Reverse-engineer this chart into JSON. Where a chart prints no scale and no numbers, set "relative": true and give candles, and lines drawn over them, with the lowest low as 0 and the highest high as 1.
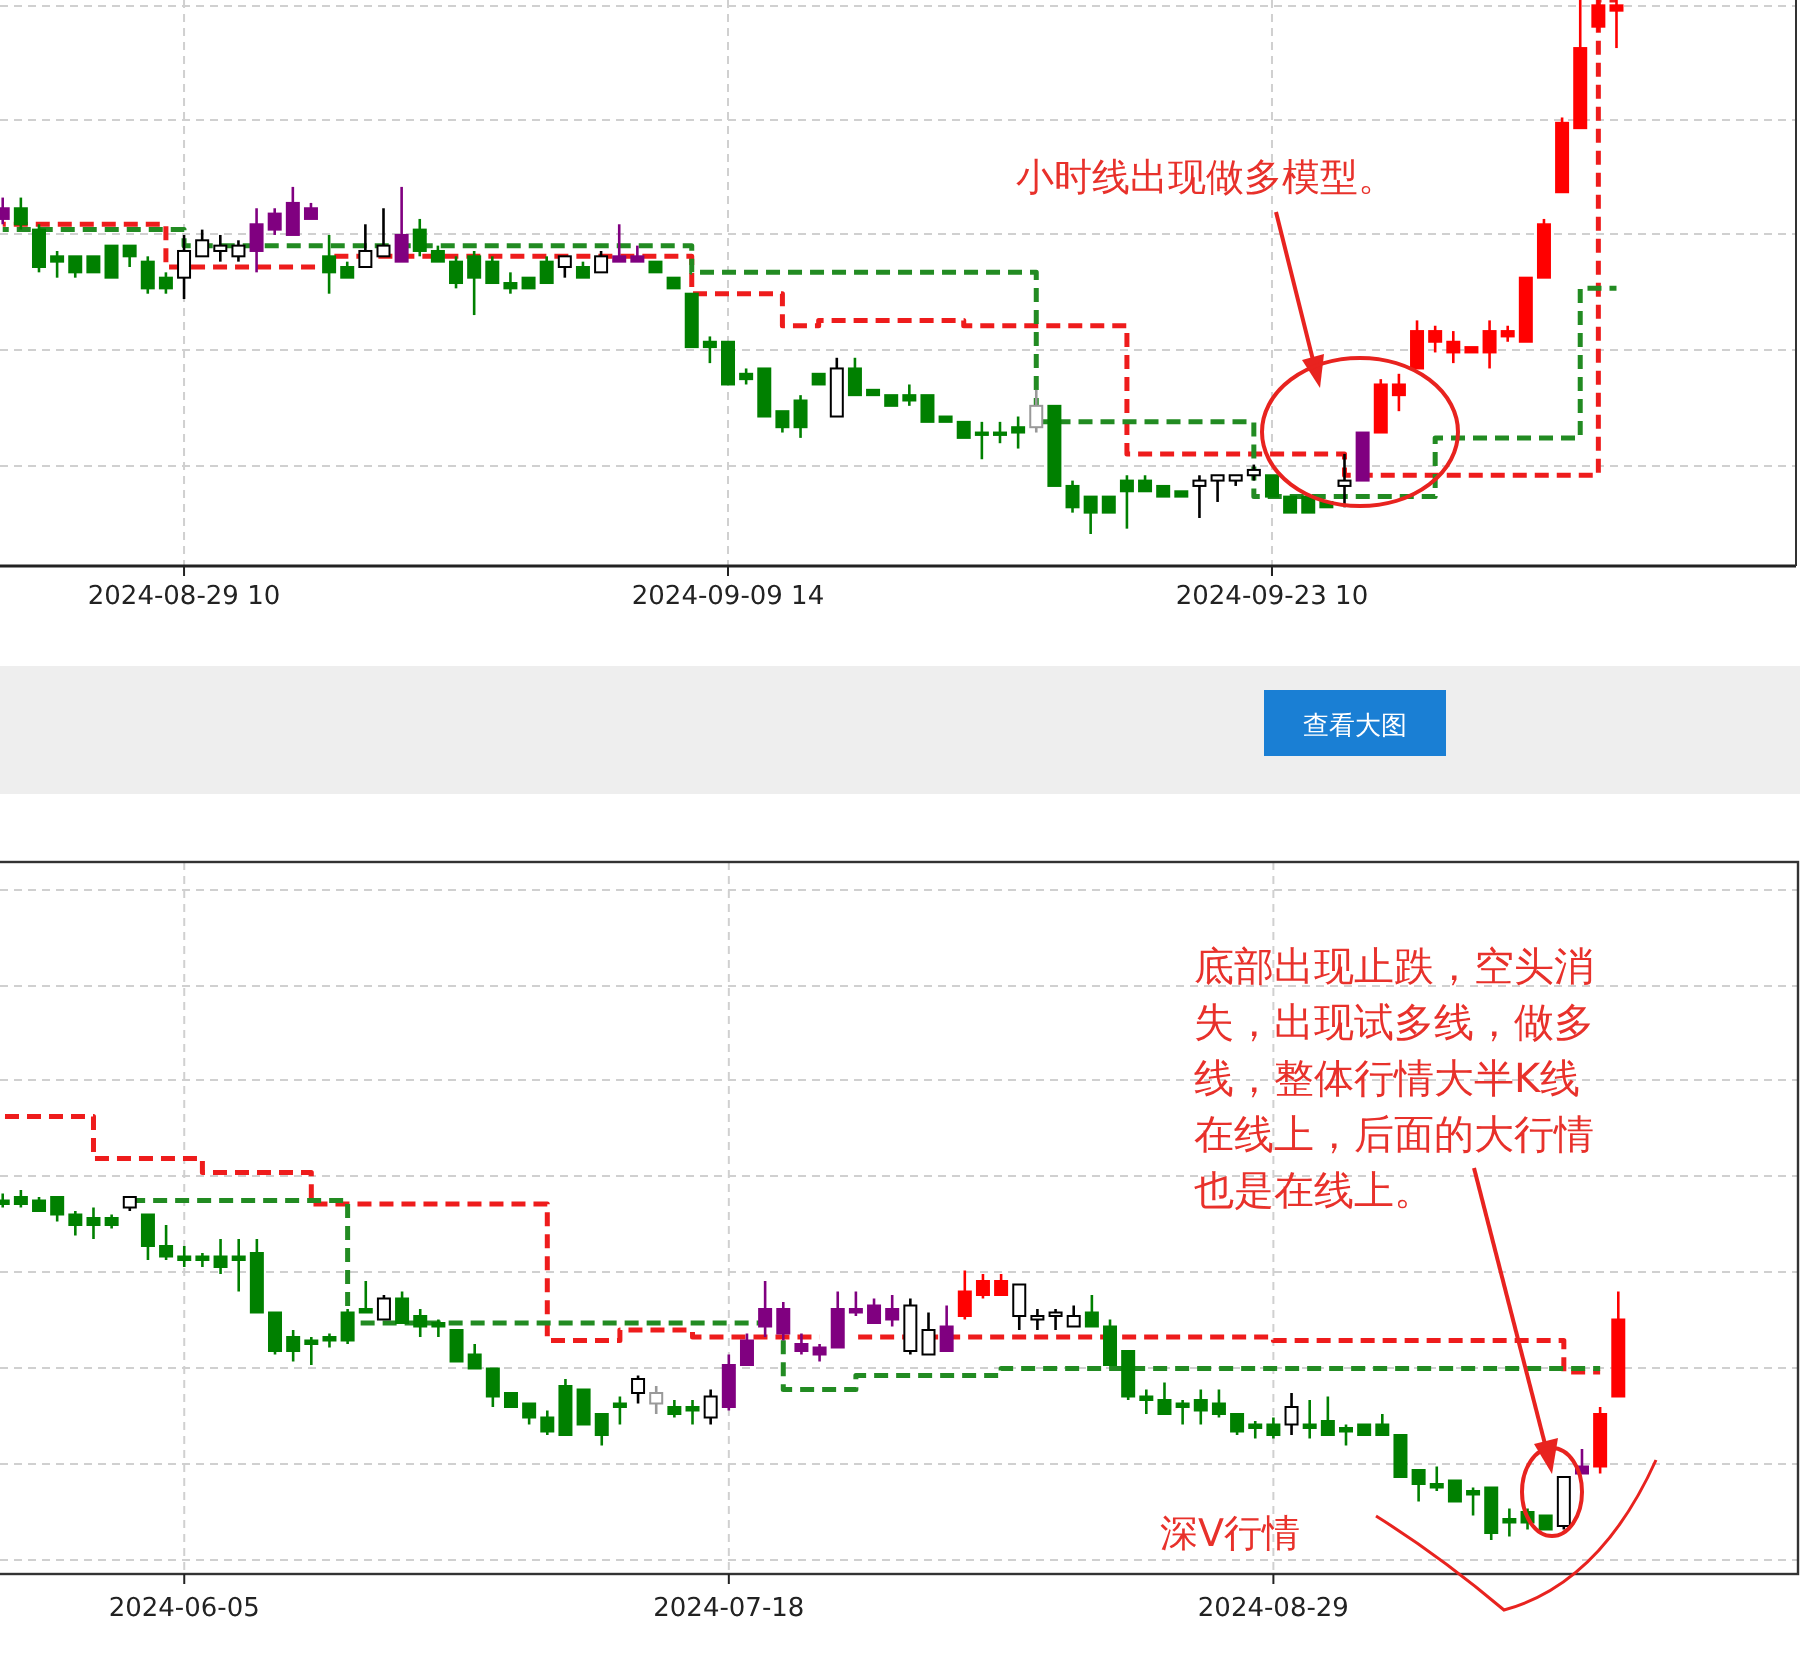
{
  "chart_data": [
    {
      "type": "candlestick",
      "relative": true,
      "grid": true,
      "line_style": "dashed",
      "categories": [
        null,
        null,
        null,
        null,
        null,
        null,
        null,
        null,
        null,
        null,
        "2024-08-29 10",
        null,
        null,
        null,
        null,
        null,
        null,
        null,
        null,
        null,
        null,
        null,
        null,
        null,
        null,
        null,
        null,
        null,
        null,
        null,
        null,
        null,
        null,
        null,
        null,
        null,
        null,
        null,
        null,
        null,
        "2024-09-09 14",
        null,
        null,
        null,
        null,
        null,
        null,
        null,
        null,
        null,
        null,
        null,
        null,
        null,
        null,
        null,
        null,
        null,
        null,
        null,
        null,
        null,
        null,
        null,
        null,
        null,
        null,
        null,
        null,
        null,
        "2024-09-23 10",
        null,
        null,
        null,
        null,
        null,
        null,
        null,
        null,
        null,
        null,
        null,
        null,
        null,
        null,
        null,
        null,
        null,
        null,
        null
      ],
      "ohlc": [
        [
          0.59,
          0.63,
          0.58,
          0.61
        ],
        [
          0.61,
          0.63,
          0.57,
          0.58
        ],
        [
          0.57,
          0.58,
          0.49,
          0.5
        ],
        [
          0.52,
          0.53,
          0.48,
          0.51
        ],
        [
          0.52,
          0.52,
          0.48,
          0.49
        ],
        [
          0.52,
          0.52,
          0.49,
          0.49
        ],
        [
          0.54,
          0.54,
          0.48,
          0.48
        ],
        [
          0.54,
          0.54,
          0.5,
          0.52
        ],
        [
          0.51,
          0.52,
          0.45,
          0.46
        ],
        [
          0.48,
          0.49,
          0.45,
          0.46
        ],
        [
          0.48,
          0.56,
          0.44,
          0.53
        ],
        [
          0.52,
          0.57,
          0.52,
          0.55
        ],
        [
          0.53,
          0.56,
          0.51,
          0.54
        ],
        [
          0.52,
          0.55,
          0.51,
          0.54
        ],
        [
          0.53,
          0.61,
          0.49,
          0.58
        ],
        [
          0.57,
          0.61,
          0.56,
          0.6
        ],
        [
          0.56,
          0.65,
          0.56,
          0.62
        ],
        [
          0.59,
          0.62,
          0.59,
          0.61
        ],
        [
          0.52,
          0.56,
          0.45,
          0.49
        ],
        [
          0.5,
          0.51,
          0.48,
          0.48
        ],
        [
          0.5,
          0.58,
          0.5,
          0.53
        ],
        [
          0.52,
          0.61,
          0.52,
          0.54
        ],
        [
          0.51,
          0.65,
          0.51,
          0.56
        ],
        [
          0.57,
          0.59,
          0.52,
          0.53
        ],
        [
          0.53,
          0.54,
          0.51,
          0.51
        ],
        [
          0.51,
          0.52,
          0.46,
          0.47
        ],
        [
          0.52,
          0.53,
          0.41,
          0.48
        ],
        [
          0.51,
          0.52,
          0.47,
          0.47
        ],
        [
          0.47,
          0.49,
          0.45,
          0.46
        ],
        [
          0.48,
          0.48,
          0.46,
          0.46
        ],
        [
          0.51,
          0.52,
          0.47,
          0.47
        ],
        [
          0.5,
          0.52,
          0.48,
          0.52
        ],
        [
          0.5,
          0.51,
          0.48,
          0.48
        ],
        [
          0.49,
          0.53,
          0.49,
          0.52
        ],
        [
          0.51,
          0.58,
          0.51,
          0.52
        ],
        [
          0.51,
          0.54,
          0.51,
          0.52
        ],
        [
          0.51,
          0.51,
          0.49,
          0.49
        ],
        [
          0.48,
          0.48,
          0.46,
          0.46
        ],
        [
          0.45,
          0.45,
          0.35,
          0.35
        ],
        [
          0.36,
          0.37,
          0.32,
          0.35
        ],
        [
          0.36,
          0.36,
          0.28,
          0.28
        ],
        [
          0.3,
          0.31,
          0.28,
          0.29
        ],
        [
          0.31,
          0.31,
          0.22,
          0.22
        ],
        [
          0.23,
          0.23,
          0.19,
          0.2
        ],
        [
          0.25,
          0.26,
          0.18,
          0.2
        ],
        [
          0.3,
          0.3,
          0.28,
          0.28
        ],
        [
          0.22,
          0.33,
          0.22,
          0.31
        ],
        [
          0.31,
          0.33,
          0.26,
          0.26
        ],
        [
          0.27,
          0.27,
          0.26,
          0.26
        ],
        [
          0.26,
          0.26,
          0.24,
          0.24
        ],
        [
          0.26,
          0.28,
          0.24,
          0.25
        ],
        [
          0.26,
          0.26,
          0.21,
          0.21
        ],
        [
          0.22,
          0.22,
          0.21,
          0.21
        ],
        [
          0.21,
          0.21,
          0.18,
          0.18
        ],
        [
          0.19,
          0.21,
          0.14,
          0.19
        ],
        [
          0.19,
          0.21,
          0.17,
          0.19
        ],
        [
          0.2,
          0.22,
          0.16,
          0.19
        ],
        [
          0.2,
          0.27,
          0.19,
          0.24
        ],
        [
          0.24,
          0.24,
          0.09,
          0.09
        ],
        [
          0.09,
          0.1,
          0.04,
          0.05
        ],
        [
          0.07,
          0.07,
          0.0,
          0.04
        ],
        [
          0.07,
          0.07,
          0.04,
          0.04
        ],
        [
          0.1,
          0.11,
          0.01,
          0.08
        ],
        [
          0.1,
          0.11,
          0.08,
          0.08
        ],
        [
          0.09,
          0.09,
          0.07,
          0.07
        ],
        [
          0.08,
          0.08,
          0.07,
          0.07
        ],
        [
          0.09,
          0.11,
          0.03,
          0.1
        ],
        [
          0.1,
          0.11,
          0.06,
          0.11
        ],
        [
          0.1,
          0.11,
          0.09,
          0.11
        ],
        [
          0.11,
          0.13,
          0.1,
          0.12
        ],
        [
          0.11,
          0.11,
          0.07,
          0.07
        ],
        [
          0.07,
          0.07,
          0.04,
          0.04
        ],
        [
          0.07,
          0.07,
          0.04,
          0.04
        ],
        [
          0.06,
          0.06,
          0.05,
          0.05
        ],
        [
          0.09,
          0.15,
          0.05,
          0.1
        ],
        [
          0.1,
          0.19,
          0.1,
          0.19
        ],
        [
          0.19,
          0.29,
          0.19,
          0.28
        ],
        [
          0.26,
          0.3,
          0.23,
          0.28
        ],
        [
          0.31,
          0.4,
          0.31,
          0.38
        ],
        [
          0.36,
          0.39,
          0.34,
          0.38
        ],
        [
          0.34,
          0.38,
          0.32,
          0.36
        ],
        [
          0.34,
          0.35,
          0.34,
          0.35
        ],
        [
          0.34,
          0.4,
          0.31,
          0.38
        ],
        [
          0.37,
          0.39,
          0.36,
          0.38
        ],
        [
          0.36,
          0.48,
          0.36,
          0.48
        ],
        [
          0.48,
          0.59,
          0.48,
          0.58
        ],
        [
          0.64,
          0.78,
          0.64,
          0.77
        ],
        [
          0.76,
          1.0,
          0.76,
          0.91
        ],
        [
          0.95,
          1.0,
          0.94,
          0.99
        ],
        [
          0.98,
          1.0,
          0.91,
          0.99
        ]
      ],
      "colors": [
        "#800080",
        "#008000",
        "#008000",
        "#008000",
        "#008000",
        "#008000",
        "#008000",
        "#008000",
        "#008000",
        "#008000",
        "#000000",
        "#000000",
        "#000000",
        "#000000",
        "#800080",
        "#800080",
        "#800080",
        "#800080",
        "#008000",
        "#008000",
        "#000000",
        "#000000",
        "#800080",
        "#008000",
        "#008000",
        "#008000",
        "#008000",
        "#008000",
        "#008000",
        "#008000",
        "#008000",
        "#000000",
        "#008000",
        "#000000",
        "#800080",
        "#800080",
        "#008000",
        "#008000",
        "#008000",
        "#008000",
        "#008000",
        "#008000",
        "#008000",
        "#008000",
        "#008000",
        "#008000",
        "#000000",
        "#008000",
        "#008000",
        "#008000",
        "#008000",
        "#008000",
        "#008000",
        "#008000",
        "#008000",
        "#008000",
        "#008000",
        "#999999",
        "#008000",
        "#008000",
        "#008000",
        "#008000",
        "#008000",
        "#008000",
        "#008000",
        "#008000",
        "#000000",
        "#000000",
        "#000000",
        "#000000",
        "#008000",
        "#008000",
        "#008000",
        "#008000",
        "#000000",
        "#800080",
        "#ff0000",
        "#ff0000",
        "#ff0000",
        "#ff0000",
        "#ff0000",
        "#ff0000",
        "#ff0000",
        "#ff0000",
        "#ff0000",
        "#ff0000",
        "#ff0000",
        "#ff0000",
        "#ff0000",
        "#ff0000"
      ],
      "series": [
        {
          "type": "step",
          "color": "#ee1c1c",
          "values": [
            0.58,
            0.58,
            0.58,
            0.58,
            0.58,
            0.58,
            0.58,
            0.58,
            0.58,
            0.5,
            0.5,
            0.5,
            0.5,
            0.5,
            0.5,
            0.5,
            0.5,
            0.5,
            0.52,
            0.52,
            0.52,
            0.52,
            0.52,
            0.52,
            0.52,
            0.52,
            0.52,
            0.52,
            0.52,
            0.52,
            0.52,
            0.52,
            0.52,
            0.52,
            0.52,
            0.52,
            0.52,
            0.52,
            0.45,
            0.45,
            0.45,
            0.45,
            0.45,
            0.39,
            0.39,
            0.4,
            0.4,
            0.4,
            0.4,
            0.4,
            0.4,
            0.4,
            0.4,
            0.39,
            0.39,
            0.39,
            0.39,
            0.39,
            0.39,
            0.39,
            0.39,
            0.39,
            0.15,
            0.15,
            0.15,
            0.15,
            0.15,
            0.15,
            0.15,
            0.15,
            0.15,
            0.15,
            0.15,
            0.15,
            0.11,
            0.11,
            0.11,
            0.11,
            0.11,
            0.11,
            0.11,
            0.11,
            0.11,
            0.11,
            0.11,
            0.11,
            0.11,
            0.11,
            1.0,
            1.0
          ]
        },
        {
          "type": "step",
          "color": "#228b22",
          "values": [
            0.57,
            0.57,
            0.57,
            0.57,
            0.57,
            0.57,
            0.57,
            0.57,
            0.57,
            0.57,
            0.54,
            0.54,
            0.54,
            0.54,
            0.54,
            0.54,
            0.54,
            0.54,
            0.54,
            0.54,
            0.54,
            0.54,
            0.54,
            0.54,
            0.54,
            0.54,
            0.54,
            0.54,
            0.54,
            0.54,
            0.54,
            0.54,
            0.54,
            0.54,
            0.54,
            0.54,
            0.54,
            0.54,
            0.49,
            0.49,
            0.49,
            0.49,
            0.49,
            0.49,
            0.49,
            0.49,
            0.49,
            0.49,
            0.49,
            0.49,
            0.49,
            0.49,
            0.49,
            0.49,
            0.49,
            0.49,
            0.49,
            0.21,
            0.21,
            0.21,
            0.21,
            0.21,
            0.21,
            0.21,
            0.21,
            0.21,
            0.21,
            0.21,
            0.21,
            0.07,
            0.07,
            0.07,
            0.07,
            0.07,
            0.07,
            0.07,
            0.07,
            0.07,
            0.07,
            0.18,
            0.18,
            0.18,
            0.18,
            0.18,
            0.18,
            0.18,
            0.18,
            0.46,
            0.46,
            0.46
          ]
        }
      ],
      "annotations": [
        "小时线出现做多模型。"
      ]
    },
    {
      "type": "other",
      "annotations": [
        "查看大图"
      ]
    },
    {
      "type": "candlestick",
      "relative": true,
      "grid": true,
      "line_style": "dashed",
      "categories": [
        null,
        null,
        null,
        null,
        null,
        null,
        null,
        null,
        null,
        null,
        "2024-06-05",
        null,
        null,
        null,
        null,
        null,
        null,
        null,
        null,
        null,
        null,
        null,
        null,
        null,
        null,
        null,
        null,
        null,
        null,
        null,
        null,
        null,
        null,
        null,
        null,
        null,
        null,
        null,
        null,
        null,
        "2024-07-18",
        null,
        null,
        null,
        null,
        null,
        null,
        null,
        null,
        null,
        null,
        null,
        null,
        null,
        null,
        null,
        null,
        null,
        null,
        null,
        null,
        null,
        null,
        null,
        null,
        null,
        null,
        null,
        null,
        null,
        "2024-08-29",
        null,
        null,
        null,
        null,
        null,
        null,
        null,
        null,
        null,
        null,
        null,
        null,
        null,
        null,
        null,
        null,
        null,
        null,
        null
      ],
      "ohlc": [
        [
          0.97,
          0.99,
          0.95,
          0.96
        ],
        [
          0.98,
          1.0,
          0.95,
          0.96
        ],
        [
          0.97,
          0.98,
          0.94,
          0.94
        ],
        [
          0.98,
          0.98,
          0.91,
          0.93
        ],
        [
          0.93,
          0.94,
          0.87,
          0.9
        ],
        [
          0.92,
          0.95,
          0.86,
          0.9
        ],
        [
          0.92,
          0.93,
          0.89,
          0.9
        ],
        [
          0.95,
          0.98,
          0.94,
          0.98
        ],
        [
          0.93,
          0.93,
          0.8,
          0.84
        ],
        [
          0.84,
          0.9,
          0.8,
          0.81
        ],
        [
          0.81,
          0.84,
          0.78,
          0.8
        ],
        [
          0.81,
          0.82,
          0.78,
          0.8
        ],
        [
          0.81,
          0.86,
          0.76,
          0.78
        ],
        [
          0.81,
          0.86,
          0.71,
          0.8
        ],
        [
          0.82,
          0.86,
          0.65,
          0.65
        ],
        [
          0.65,
          0.65,
          0.53,
          0.54
        ],
        [
          0.58,
          0.6,
          0.51,
          0.54
        ],
        [
          0.57,
          0.58,
          0.5,
          0.56
        ],
        [
          0.58,
          0.59,
          0.55,
          0.57
        ],
        [
          0.65,
          0.66,
          0.56,
          0.57
        ],
        [
          0.66,
          0.74,
          0.65,
          0.65
        ],
        [
          0.63,
          0.7,
          0.63,
          0.69
        ],
        [
          0.69,
          0.71,
          0.62,
          0.62
        ],
        [
          0.64,
          0.66,
          0.58,
          0.61
        ],
        [
          0.62,
          0.63,
          0.58,
          0.61
        ],
        [
          0.6,
          0.6,
          0.51,
          0.51
        ],
        [
          0.53,
          0.56,
          0.49,
          0.49
        ],
        [
          0.49,
          0.49,
          0.38,
          0.41
        ],
        [
          0.42,
          0.42,
          0.38,
          0.38
        ],
        [
          0.39,
          0.39,
          0.33,
          0.35
        ],
        [
          0.35,
          0.37,
          0.3,
          0.31
        ],
        [
          0.44,
          0.46,
          0.3,
          0.3
        ],
        [
          0.43,
          0.43,
          0.33,
          0.33
        ],
        [
          0.36,
          0.36,
          0.27,
          0.3
        ],
        [
          0.39,
          0.41,
          0.33,
          0.38
        ],
        [
          0.42,
          0.47,
          0.39,
          0.46
        ],
        [
          0.39,
          0.44,
          0.36,
          0.42
        ],
        [
          0.38,
          0.4,
          0.35,
          0.36
        ],
        [
          0.38,
          0.4,
          0.33,
          0.37
        ],
        [
          0.35,
          0.43,
          0.33,
          0.41
        ],
        [
          0.38,
          0.53,
          0.37,
          0.5
        ],
        [
          0.5,
          0.59,
          0.5,
          0.57
        ],
        [
          0.61,
          0.74,
          0.58,
          0.66
        ],
        [
          0.59,
          0.68,
          0.57,
          0.66
        ],
        [
          0.54,
          0.59,
          0.53,
          0.56
        ],
        [
          0.53,
          0.56,
          0.51,
          0.55
        ],
        [
          0.55,
          0.71,
          0.55,
          0.66
        ],
        [
          0.65,
          0.71,
          0.64,
          0.66
        ],
        [
          0.62,
          0.69,
          0.62,
          0.67
        ],
        [
          0.63,
          0.7,
          0.61,
          0.66
        ],
        [
          0.54,
          0.69,
          0.53,
          0.67
        ],
        [
          0.53,
          0.65,
          0.53,
          0.6
        ],
        [
          0.54,
          0.67,
          0.54,
          0.61
        ],
        [
          0.64,
          0.77,
          0.63,
          0.71
        ],
        [
          0.7,
          0.76,
          0.69,
          0.74
        ],
        [
          0.7,
          0.76,
          0.7,
          0.74
        ],
        [
          0.64,
          0.73,
          0.6,
          0.73
        ],
        [
          0.63,
          0.66,
          0.6,
          0.64
        ],
        [
          0.64,
          0.66,
          0.6,
          0.65
        ],
        [
          0.61,
          0.67,
          0.61,
          0.64
        ],
        [
          0.65,
          0.7,
          0.61,
          0.61
        ],
        [
          0.61,
          0.63,
          0.5,
          0.5
        ],
        [
          0.54,
          0.54,
          0.4,
          0.41
        ],
        [
          0.41,
          0.43,
          0.36,
          0.4
        ],
        [
          0.4,
          0.45,
          0.36,
          0.36
        ],
        [
          0.39,
          0.4,
          0.33,
          0.38
        ],
        [
          0.4,
          0.43,
          0.33,
          0.37
        ],
        [
          0.39,
          0.43,
          0.35,
          0.36
        ],
        [
          0.36,
          0.36,
          0.3,
          0.31
        ],
        [
          0.33,
          0.34,
          0.29,
          0.32
        ],
        [
          0.33,
          0.35,
          0.29,
          0.3
        ],
        [
          0.33,
          0.42,
          0.3,
          0.38
        ],
        [
          0.33,
          0.4,
          0.29,
          0.32
        ],
        [
          0.34,
          0.41,
          0.3,
          0.3
        ],
        [
          0.32,
          0.33,
          0.27,
          0.31
        ],
        [
          0.33,
          0.33,
          0.3,
          0.3
        ],
        [
          0.33,
          0.36,
          0.3,
          0.3
        ],
        [
          0.3,
          0.3,
          0.18,
          0.18
        ],
        [
          0.2,
          0.2,
          0.11,
          0.16
        ],
        [
          0.16,
          0.21,
          0.14,
          0.15
        ],
        [
          0.17,
          0.17,
          0.11,
          0.11
        ],
        [
          0.14,
          0.15,
          0.07,
          0.13
        ],
        [
          0.15,
          0.15,
          0.0,
          0.02
        ],
        [
          0.06,
          0.09,
          0.01,
          0.05
        ],
        [
          0.08,
          0.09,
          0.03,
          0.05
        ],
        [
          0.07,
          0.07,
          0.03,
          0.03
        ],
        [
          0.04,
          0.18,
          0.03,
          0.18
        ],
        [
          0.19,
          0.26,
          0.19,
          0.21
        ],
        [
          0.21,
          0.38,
          0.19,
          0.36
        ],
        [
          0.41,
          0.71,
          0.41,
          0.63
        ]
      ],
      "colors": [
        "#008000",
        "#008000",
        "#008000",
        "#008000",
        "#008000",
        "#008000",
        "#008000",
        "#000000",
        "#008000",
        "#008000",
        "#008000",
        "#008000",
        "#008000",
        "#008000",
        "#008000",
        "#008000",
        "#008000",
        "#008000",
        "#008000",
        "#008000",
        "#008000",
        "#000000",
        "#008000",
        "#008000",
        "#008000",
        "#008000",
        "#008000",
        "#008000",
        "#008000",
        "#008000",
        "#008000",
        "#008000",
        "#008000",
        "#008000",
        "#008000",
        "#000000",
        "#999999",
        "#008000",
        "#008000",
        "#000000",
        "#800080",
        "#800080",
        "#800080",
        "#800080",
        "#800080",
        "#800080",
        "#800080",
        "#800080",
        "#800080",
        "#800080",
        "#000000",
        "#000000",
        "#800080",
        "#ff0000",
        "#ff0000",
        "#ff0000",
        "#000000",
        "#000000",
        "#000000",
        "#000000",
        "#008000",
        "#008000",
        "#008000",
        "#008000",
        "#008000",
        "#008000",
        "#008000",
        "#008000",
        "#008000",
        "#008000",
        "#008000",
        "#000000",
        "#008000",
        "#008000",
        "#008000",
        "#008000",
        "#008000",
        "#008000",
        "#008000",
        "#008000",
        "#008000",
        "#008000",
        "#008000",
        "#008000",
        "#008000",
        "#008000",
        "#000000",
        "#800080",
        "#ff0000",
        "#ff0000"
      ],
      "series": [
        {
          "type": "step",
          "color": "#ee1c1c",
          "values": [
            1.21,
            1.21,
            1.21,
            1.21,
            1.21,
            1.09,
            1.09,
            1.09,
            1.09,
            1.09,
            1.09,
            1.05,
            1.05,
            1.05,
            1.05,
            1.05,
            1.05,
            0.96,
            0.96,
            0.96,
            0.96,
            0.96,
            0.96,
            0.96,
            0.96,
            0.96,
            0.96,
            0.96,
            0.96,
            0.96,
            0.57,
            0.57,
            0.57,
            0.57,
            0.6,
            0.6,
            0.6,
            0.6,
            0.58,
            0.58,
            0.58,
            0.58,
            0.58,
            0.58,
            0.58,
            0.58,
            null,
            0.58,
            0.58,
            0.58,
            0.58,
            0.58,
            0.58,
            0.58,
            0.58,
            0.58,
            0.58,
            0.58,
            0.58,
            0.58,
            0.58,
            0.58,
            0.58,
            0.58,
            0.58,
            0.58,
            0.58,
            0.58,
            0.58,
            0.58,
            0.57,
            0.57,
            0.57,
            0.57,
            0.57,
            0.57,
            0.57,
            0.57,
            0.57,
            0.57,
            0.57,
            0.57,
            0.57,
            0.57,
            0.57,
            0.57,
            0.48,
            0.48,
            0.48,
            null
          ]
        },
        {
          "type": "step",
          "color": "#228b22",
          "values": [
            null,
            null,
            null,
            null,
            null,
            null,
            null,
            0.97,
            0.97,
            0.97,
            0.97,
            0.97,
            0.97,
            0.97,
            0.97,
            0.97,
            0.97,
            0.97,
            0.97,
            0.62,
            0.62,
            0.62,
            0.62,
            0.62,
            0.62,
            0.62,
            0.62,
            0.62,
            0.62,
            0.62,
            0.62,
            0.62,
            0.62,
            0.62,
            0.62,
            0.62,
            0.62,
            0.62,
            0.62,
            0.62,
            0.62,
            0.62,
            0.62,
            0.43,
            0.43,
            0.43,
            0.43,
            0.47,
            0.47,
            0.47,
            0.47,
            0.47,
            0.47,
            0.47,
            0.47,
            0.49,
            0.49,
            0.49,
            0.49,
            0.49,
            0.49,
            0.49,
            0.49,
            0.49,
            0.49,
            0.49,
            0.49,
            0.49,
            0.49,
            0.49,
            0.49,
            0.49,
            0.49,
            0.49,
            0.49,
            0.49,
            0.49,
            0.49,
            0.49,
            0.49,
            0.49,
            0.49,
            0.49,
            0.49,
            0.49,
            0.49,
            0.49,
            0.49,
            0.49,
            null
          ]
        }
      ],
      "annotations": [
        "底部出现止跌，空头消失，出现试多线，做多线，整体行情大半K线在线上，后面的大行情也是在线上。",
        "深V行情"
      ]
    }
  ]
}
